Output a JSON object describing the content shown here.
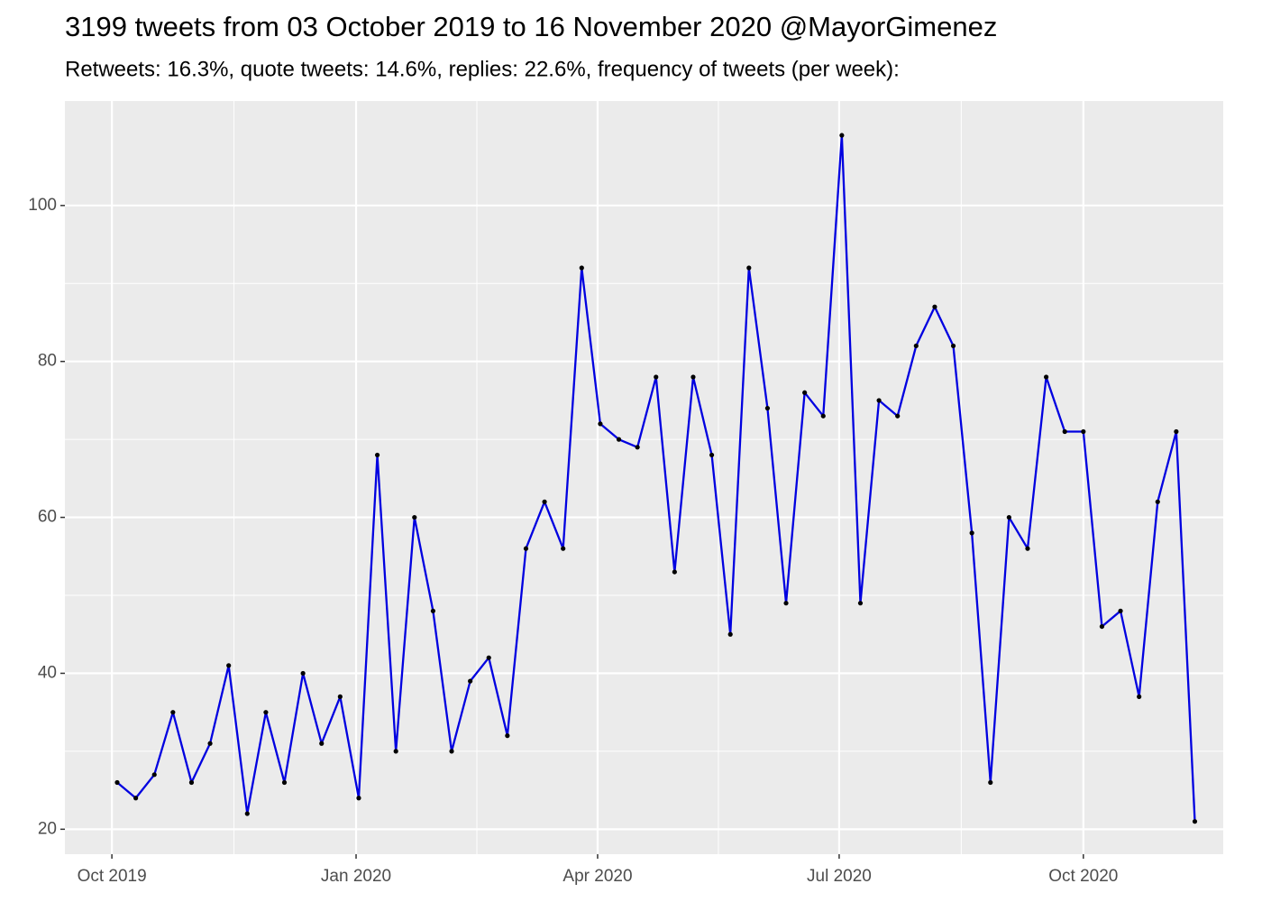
{
  "chart_data": {
    "type": "line",
    "title": "3199 tweets from 03 October 2019 to 16 November 2020 @MayorGimenez",
    "subtitle": "Retweets: 16.3%, quote tweets: 14.6%, replies: 22.6%, frequency of tweets (per week):",
    "x": [
      2,
      9,
      16,
      23,
      30,
      37,
      44,
      51,
      58,
      65,
      72,
      79,
      86,
      93,
      100,
      107,
      114,
      121,
      128,
      135,
      142,
      149,
      156,
      163,
      170,
      177,
      184,
      191,
      198,
      205,
      212,
      219,
      226,
      233,
      240,
      247,
      254,
      261,
      268,
      275,
      282,
      289,
      296,
      303,
      310,
      317,
      324,
      331,
      338,
      345,
      352,
      359,
      366,
      373,
      380,
      387,
      394,
      401,
      408
    ],
    "series": [
      {
        "color": "#0000e0",
        "values": [
          26,
          24,
          27,
          35,
          26,
          31,
          41,
          22,
          35,
          26,
          40,
          31,
          37,
          24,
          68,
          30,
          60,
          48,
          30,
          39,
          42,
          32,
          56,
          62,
          56,
          92,
          72,
          70,
          69,
          78,
          53,
          78,
          68,
          45,
          92,
          74,
          49,
          76,
          73,
          109,
          49,
          75,
          73,
          82,
          87,
          82,
          58,
          26,
          60,
          56,
          78,
          71,
          71,
          46,
          48,
          37,
          62,
          71,
          21
        ]
      }
    ],
    "xlim": [
      -17.7,
      418.7
    ],
    "xticks": [
      {
        "value": 0,
        "label": "Oct 2019"
      },
      {
        "value": 92,
        "label": "Jan 2020"
      },
      {
        "value": 183,
        "label": "Apr 2020"
      },
      {
        "value": 274,
        "label": "Jul 2020"
      },
      {
        "value": 366,
        "label": "Oct 2020"
      }
    ],
    "ylim": [
      16.8,
      113.4
    ],
    "yticks": [
      20,
      40,
      60,
      80,
      100
    ],
    "grid": true
  }
}
